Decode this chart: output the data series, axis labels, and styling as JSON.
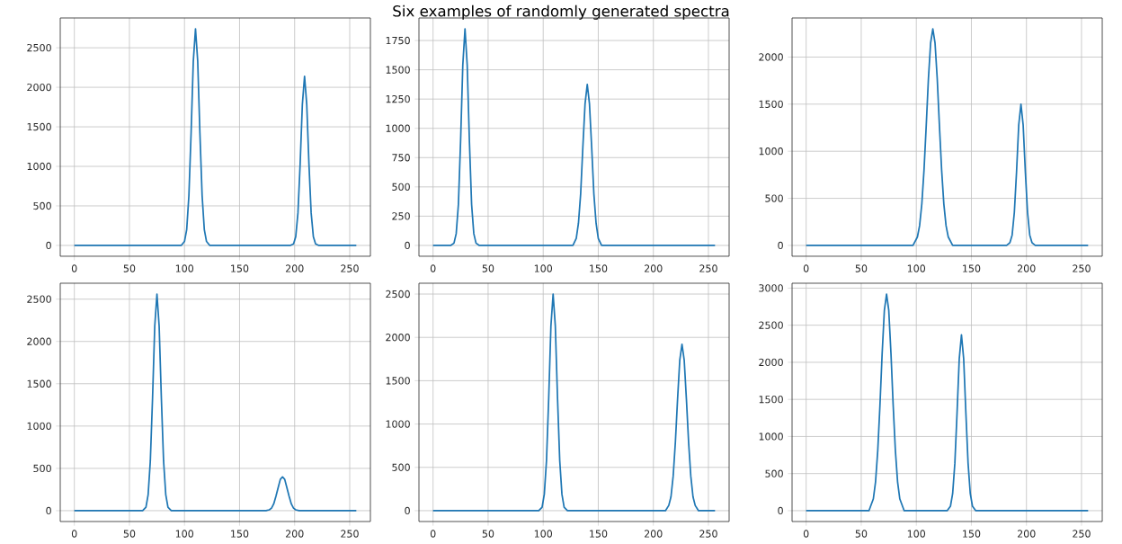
{
  "chart_data": [
    {
      "type": "line",
      "x": [
        0,
        97,
        100,
        102,
        104,
        106,
        108,
        110,
        112,
        114,
        116,
        118,
        120,
        123,
        196,
        199,
        201,
        203,
        205,
        207,
        209,
        211,
        213,
        215,
        217,
        219,
        222,
        256
      ],
      "series": [
        {
          "color": "#1f77b4",
          "values": [
            0,
            0,
            50,
            200,
            630,
            1420,
            2330,
            2740,
            2330,
            1420,
            630,
            200,
            50,
            0,
            0,
            20,
            110,
            410,
            1030,
            1780,
            2140,
            1780,
            1030,
            410,
            110,
            20,
            0,
            0
          ]
        }
      ],
      "xlim": [
        -12.8,
        268.8
      ],
      "ylim": [
        -137,
        2877
      ],
      "xticks": [
        0,
        50,
        100,
        150,
        200,
        250
      ],
      "yticks": [
        0,
        500,
        1000,
        1500,
        2000,
        2500
      ],
      "grid": true
    },
    {
      "type": "line",
      "title": "Six examples of randomly generated spectra",
      "x": [
        0,
        16,
        19,
        21,
        23,
        25,
        27,
        29,
        31,
        33,
        35,
        37,
        39,
        42,
        127,
        130,
        132,
        134,
        136,
        138,
        140,
        142,
        144,
        146,
        148,
        150,
        153,
        256
      ],
      "series": [
        {
          "color": "#1f77b4",
          "values": [
            0,
            0,
            20,
            100,
            350,
            890,
            1540,
            1850,
            1540,
            890,
            350,
            100,
            20,
            0,
            0,
            60,
            190,
            440,
            840,
            1210,
            1375,
            1210,
            840,
            440,
            190,
            60,
            0,
            0
          ]
        }
      ],
      "xlim": [
        -12.8,
        268.8
      ],
      "ylim": [
        -92.5,
        1942.5
      ],
      "xticks": [
        0,
        50,
        100,
        150,
        200,
        250
      ],
      "yticks": [
        0,
        250,
        500,
        750,
        1000,
        1250,
        1500,
        1750
      ],
      "grid": true
    },
    {
      "type": "line",
      "x": [
        0,
        97,
        101,
        103,
        105,
        107,
        109,
        111,
        113,
        115,
        117,
        119,
        121,
        123,
        125,
        127,
        129,
        133,
        182,
        185,
        187,
        189,
        191,
        193,
        195,
        197,
        199,
        201,
        203,
        205,
        208,
        256
      ],
      "series": [
        {
          "color": "#1f77b4",
          "values": [
            0,
            0,
            90,
            210,
            440,
            800,
            1270,
            1770,
            2150,
            2300,
            2150,
            1770,
            1270,
            800,
            440,
            210,
            90,
            0,
            0,
            30,
            110,
            350,
            780,
            1280,
            1500,
            1280,
            780,
            350,
            110,
            30,
            0,
            0
          ]
        }
      ],
      "xlim": [
        -12.8,
        268.8
      ],
      "ylim": [
        -115,
        2415
      ],
      "xticks": [
        0,
        50,
        100,
        150,
        200,
        250
      ],
      "yticks": [
        0,
        500,
        1000,
        1500,
        2000
      ],
      "grid": true
    },
    {
      "type": "line",
      "x": [
        0,
        62,
        65,
        67,
        69,
        71,
        73,
        75,
        77,
        79,
        81,
        83,
        85,
        88,
        174,
        177,
        179,
        181,
        183,
        185,
        187,
        189,
        191,
        193,
        195,
        197,
        199,
        201,
        204,
        256
      ],
      "series": [
        {
          "color": "#1f77b4",
          "values": [
            0,
            0,
            40,
            190,
            590,
            1330,
            2180,
            2560,
            2180,
            1330,
            590,
            190,
            40,
            0,
            0,
            10,
            30,
            80,
            170,
            270,
            370,
            400,
            370,
            270,
            170,
            80,
            30,
            10,
            0,
            0
          ]
        }
      ],
      "xlim": [
        -12.8,
        268.8
      ],
      "ylim": [
        -128,
        2688
      ],
      "xticks": [
        0,
        50,
        100,
        150,
        200,
        250
      ],
      "yticks": [
        0,
        500,
        1000,
        1500,
        2000,
        2500
      ],
      "grid": true
    },
    {
      "type": "line",
      "x": [
        0,
        96,
        99,
        101,
        103,
        105,
        107,
        109,
        111,
        113,
        115,
        117,
        119,
        122,
        211,
        214,
        216,
        218,
        220,
        222,
        224,
        226,
        228,
        230,
        232,
        234,
        236,
        238,
        241,
        256
      ],
      "series": [
        {
          "color": "#1f77b4",
          "values": [
            0,
            0,
            40,
            190,
            580,
            1300,
            2130,
            2500,
            2130,
            1300,
            580,
            190,
            40,
            0,
            0,
            60,
            160,
            400,
            790,
            1290,
            1740,
            1920,
            1740,
            1290,
            790,
            400,
            160,
            60,
            0,
            0
          ]
        }
      ],
      "xlim": [
        -12.8,
        268.8
      ],
      "ylim": [
        -125,
        2625
      ],
      "xticks": [
        0,
        50,
        100,
        150,
        200,
        250
      ],
      "yticks": [
        0,
        500,
        1000,
        1500,
        2000,
        2500
      ],
      "grid": true
    },
    {
      "type": "line",
      "x": [
        0,
        57,
        61,
        63,
        65,
        67,
        69,
        71,
        73,
        75,
        77,
        79,
        81,
        83,
        85,
        89,
        128,
        131,
        133,
        135,
        137,
        139,
        141,
        143,
        145,
        147,
        149,
        151,
        154,
        256
      ],
      "series": [
        {
          "color": "#1f77b4",
          "values": [
            0,
            0,
            160,
            390,
            810,
            1420,
            2120,
            2700,
            2920,
            2700,
            2120,
            1420,
            810,
            390,
            160,
            0,
            0,
            60,
            230,
            640,
            1320,
            2050,
            2370,
            2050,
            1320,
            640,
            230,
            60,
            0,
            0
          ]
        }
      ],
      "xlim": [
        -12.8,
        268.8
      ],
      "ylim": [
        -146,
        3066
      ],
      "xticks": [
        0,
        50,
        100,
        150,
        200,
        250
      ],
      "yticks": [
        0,
        500,
        1000,
        1500,
        2000,
        2500,
        3000
      ],
      "grid": true
    }
  ]
}
